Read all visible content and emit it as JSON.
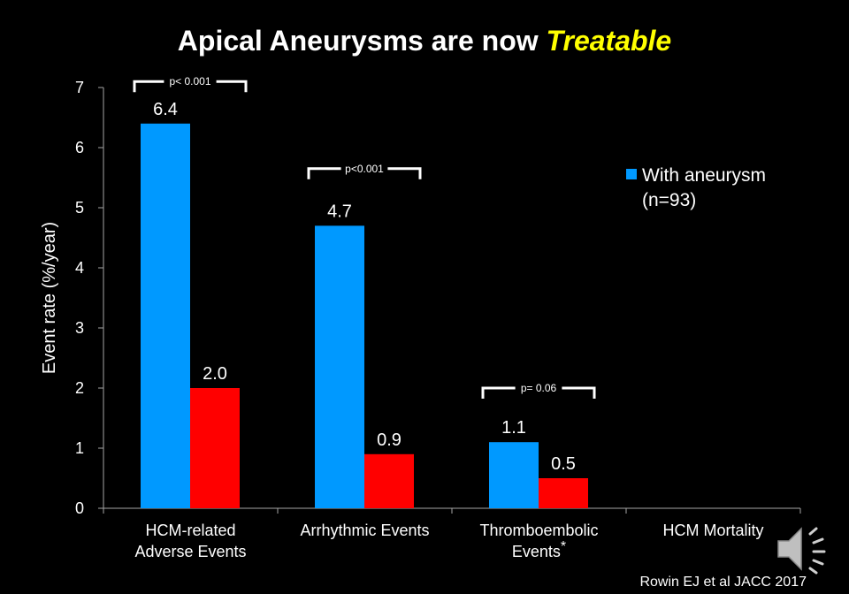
{
  "title": {
    "main": "Apical Aneurysms are now",
    "emphasis": "Treatable"
  },
  "citation": "Rowin EJ et al JACC 2017",
  "colors": {
    "with_aneurysm": "#0099ff",
    "second_series": "#ff0000",
    "emphasis": "#ffff00"
  },
  "speaker_icon": "speaker-icon",
  "chart_data": {
    "type": "bar",
    "title": "",
    "xlabel": "",
    "ylabel": "Event rate (%/year)",
    "ylim": [
      0,
      7
    ],
    "yticks": [
      0,
      1,
      2,
      3,
      4,
      5,
      6,
      7
    ],
    "categories": [
      {
        "lines": [
          "HCM-related",
          "Adverse Events"
        ],
        "asterisk": ""
      },
      {
        "lines": [
          "Arrhythmic Events"
        ],
        "asterisk": ""
      },
      {
        "lines": [
          "Thromboembolic",
          "Events"
        ],
        "asterisk": "*"
      },
      {
        "lines": [
          "HCM Mortality"
        ],
        "asterisk": ""
      }
    ],
    "series": [
      {
        "name": "With aneurysm",
        "legend_lines": [
          "With aneurysm",
          "(n=93)"
        ],
        "color": "#0099ff",
        "values": [
          6.4,
          4.7,
          1.1,
          null
        ],
        "labels": [
          "6.4",
          "4.7",
          "1.1",
          ""
        ]
      },
      {
        "name": "",
        "color": "#ff0000",
        "values": [
          2.0,
          0.9,
          0.5,
          null
        ],
        "labels": [
          "2.0",
          "0.9",
          "0.5",
          ""
        ]
      }
    ],
    "annotations": [
      {
        "category": 0,
        "text": "p< 0.001",
        "level": 7.1
      },
      {
        "category": 1,
        "text": "p<0.001",
        "level": 5.65
      },
      {
        "category": 2,
        "text": "p= 0.06",
        "level": 2.0
      }
    ],
    "legend": "right"
  }
}
